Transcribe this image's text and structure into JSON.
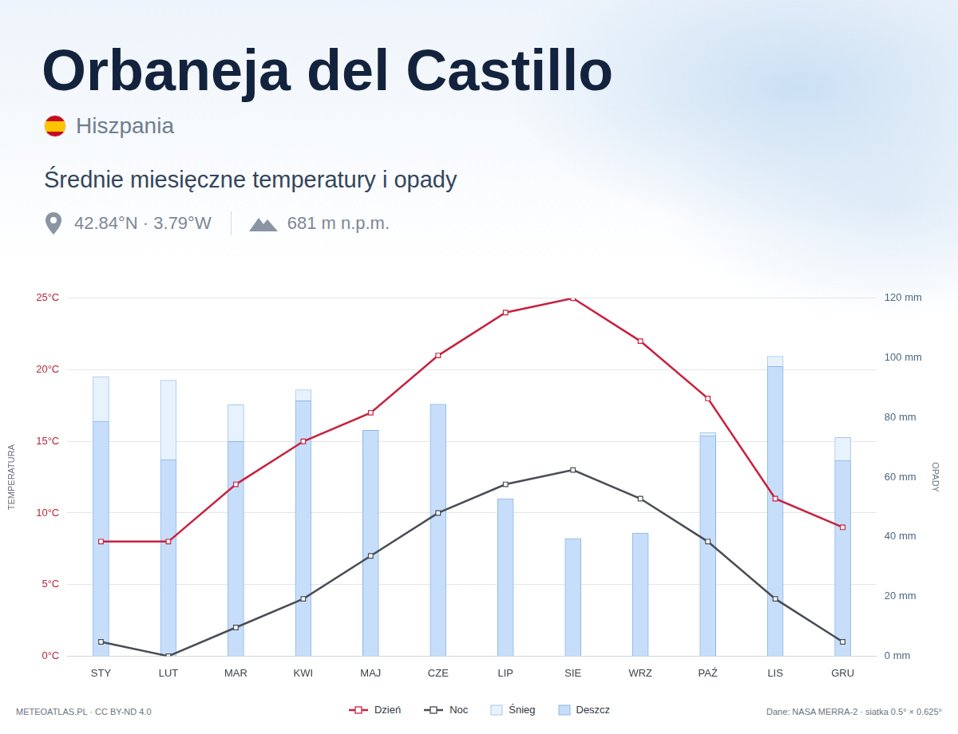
{
  "chart_data": {
    "type": "bar",
    "title": "Orbaneja del Castillo",
    "country": "Hiszpania",
    "subtitle": "Średnie miesięczne temperatury i opady",
    "coordinates": "42.84°N · 3.79°W",
    "elevation": "681 m n.p.m.",
    "credit": "METEOATLAS.PL · CC BY-ND 4.0",
    "source": "Dane: NASA MERRA-2 · siatka 0.5° × 0.625°",
    "y_label": "TEMPERATURA",
    "y2_label": "OPADY",
    "categories": [
      "STY",
      "LUT",
      "MAR",
      "KWI",
      "MAJ",
      "CZE",
      "LIP",
      "SIE",
      "WRZ",
      "PAŹ",
      "LIS",
      "GRU"
    ],
    "series": [
      {
        "name": "Dzień",
        "type": "line",
        "color": "#c8213f",
        "marker": "square",
        "values": [
          8,
          8,
          12,
          15,
          17,
          21,
          24,
          25,
          22,
          18,
          11,
          9
        ]
      },
      {
        "name": "Noc",
        "type": "line",
        "color": "#4a4d55",
        "marker": "square",
        "values": [
          1,
          0,
          2,
          4,
          7,
          10,
          12,
          13,
          11,
          8,
          4,
          1
        ]
      },
      {
        "name": "Śnieg",
        "type": "bar",
        "color": "#e8f2fd",
        "axis": "y2",
        "values": [
          15,
          26.6,
          12.3,
          3.7,
          0,
          0,
          0,
          0,
          0,
          1,
          3.4,
          7.7
        ]
      },
      {
        "name": "Deszcz",
        "type": "bar",
        "color": "#c6defa",
        "axis": "y2",
        "values": [
          78.7,
          65.9,
          72,
          85.6,
          75.7,
          84.5,
          52.8,
          39.5,
          41.3,
          73.9,
          97.1,
          65.6
        ]
      }
    ],
    "stacked": true,
    "ylim": [
      0,
      25
    ],
    "yticks": [
      {
        "value": 0,
        "label": "0°C"
      },
      {
        "value": 5,
        "label": "5°C"
      },
      {
        "value": 10,
        "label": "10°C"
      },
      {
        "value": 15,
        "label": "15°C"
      },
      {
        "value": 20,
        "label": "20°C"
      },
      {
        "value": 25,
        "label": "25°C"
      }
    ],
    "y2lim": [
      0,
      120
    ],
    "y2ticks": [
      {
        "value": 0,
        "label": "0 mm"
      },
      {
        "value": 20,
        "label": "20 mm"
      },
      {
        "value": 40,
        "label": "40 mm"
      },
      {
        "value": 60,
        "label": "60 mm"
      },
      {
        "value": 80,
        "label": "80 mm"
      },
      {
        "value": 100,
        "label": "100 mm"
      },
      {
        "value": 120,
        "label": "120 mm"
      }
    ],
    "grid": true,
    "legend": "bottom"
  }
}
